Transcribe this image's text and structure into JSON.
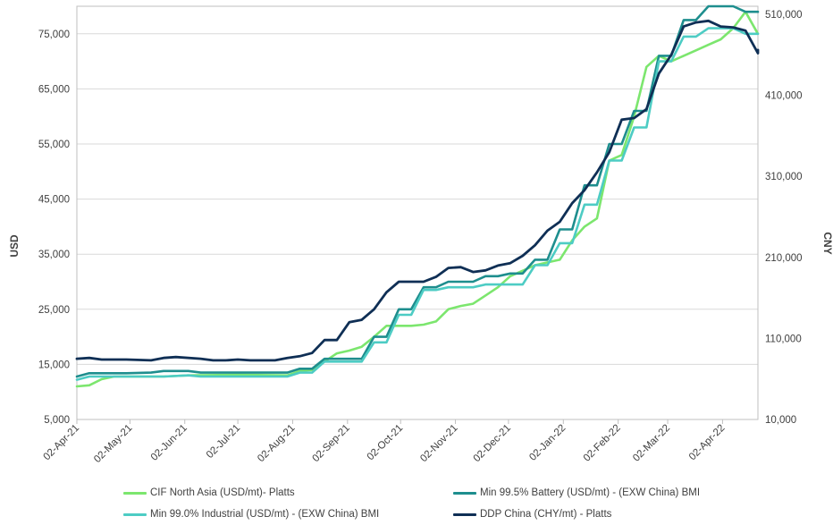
{
  "chart_data": {
    "type": "line",
    "title": "",
    "ylabel_left": "USD",
    "ylabel_right": "CNY",
    "ylim_left": [
      5000,
      80000
    ],
    "ylim_right": [
      10000,
      520000
    ],
    "yticks_left": [
      "5,000",
      "15,000",
      "25,000",
      "35,000",
      "45,000",
      "55,000",
      "65,000",
      "75,000"
    ],
    "yticks_right": [
      "10,000",
      "110,000",
      "210,000",
      "310,000",
      "410,000",
      "510,000"
    ],
    "xticks": [
      "02-Apr-21",
      "02-May-21",
      "02-Jun-21",
      "02-Jul-21",
      "02-Aug-21",
      "02-Sep-21",
      "02-Oct-21",
      "02-Nov-21",
      "02-Dec-21",
      "02-Jan-22",
      "02-Feb-22",
      "02-Mar-22",
      "02-Apr-22"
    ],
    "xlim": [
      "2021-04-02",
      "2022-04-22"
    ],
    "grid": true,
    "legend_position": "bottom",
    "series": [
      {
        "name": "CIF North Asia (USD/mt)- Platts",
        "axis": "left",
        "color": "#7CE66E",
        "points": [
          [
            "2021-04-02",
            11000
          ],
          [
            "2021-04-09",
            11200
          ],
          [
            "2021-04-16",
            12300
          ],
          [
            "2021-04-23",
            12800
          ],
          [
            "2021-05-21",
            12800
          ],
          [
            "2021-06-04",
            13000
          ],
          [
            "2021-07-02",
            13100
          ],
          [
            "2021-07-30",
            13000
          ],
          [
            "2021-08-06",
            13800
          ],
          [
            "2021-08-13",
            14000
          ],
          [
            "2021-08-20",
            15500
          ],
          [
            "2021-08-27",
            17000
          ],
          [
            "2021-09-03",
            17500
          ],
          [
            "2021-09-10",
            18200
          ],
          [
            "2021-09-17",
            20000
          ],
          [
            "2021-09-24",
            22000
          ],
          [
            "2021-10-01",
            22000
          ],
          [
            "2021-10-08",
            22000
          ],
          [
            "2021-10-15",
            22200
          ],
          [
            "2021-10-22",
            22800
          ],
          [
            "2021-10-29",
            25000
          ],
          [
            "2021-11-05",
            25600
          ],
          [
            "2021-11-12",
            26000
          ],
          [
            "2021-11-19",
            27500
          ],
          [
            "2021-11-26",
            29000
          ],
          [
            "2021-12-03",
            31000
          ],
          [
            "2021-12-10",
            32000
          ],
          [
            "2021-12-17",
            33000
          ],
          [
            "2021-12-24",
            33500
          ],
          [
            "2021-12-31",
            34000
          ],
          [
            "2022-01-07",
            37500
          ],
          [
            "2022-01-14",
            40000
          ],
          [
            "2022-01-21",
            41500
          ],
          [
            "2022-01-28",
            52000
          ],
          [
            "2022-02-04",
            53000
          ],
          [
            "2022-02-11",
            60000
          ],
          [
            "2022-02-18",
            69000
          ],
          [
            "2022-02-25",
            71000
          ],
          [
            "2022-03-04",
            70000
          ],
          [
            "2022-03-11",
            71000
          ],
          [
            "2022-03-18",
            72000
          ],
          [
            "2022-03-25",
            73000
          ],
          [
            "2022-04-01",
            74000
          ],
          [
            "2022-04-08",
            76000
          ],
          [
            "2022-04-15",
            79000
          ],
          [
            "2022-04-22",
            75000
          ]
        ]
      },
      {
        "name": "Min 99.5% Battery (USD/mt) - (EXW China) BMI",
        "axis": "left",
        "color": "#1E8E8E",
        "points": [
          [
            "2021-04-02",
            12800
          ],
          [
            "2021-04-09",
            13400
          ],
          [
            "2021-04-30",
            13400
          ],
          [
            "2021-05-14",
            13500
          ],
          [
            "2021-05-21",
            13800
          ],
          [
            "2021-06-04",
            13800
          ],
          [
            "2021-06-11",
            13500
          ],
          [
            "2021-07-23",
            13500
          ],
          [
            "2021-07-30",
            13500
          ],
          [
            "2021-08-06",
            14200
          ],
          [
            "2021-08-13",
            14200
          ],
          [
            "2021-08-20",
            16000
          ],
          [
            "2021-09-03",
            16000
          ],
          [
            "2021-09-10",
            16000
          ],
          [
            "2021-09-17",
            20000
          ],
          [
            "2021-09-24",
            20000
          ],
          [
            "2021-10-01",
            25000
          ],
          [
            "2021-10-08",
            25000
          ],
          [
            "2021-10-15",
            29000
          ],
          [
            "2021-10-22",
            29000
          ],
          [
            "2021-10-29",
            30000
          ],
          [
            "2021-11-12",
            30000
          ],
          [
            "2021-11-19",
            31000
          ],
          [
            "2021-11-26",
            31000
          ],
          [
            "2021-12-03",
            31500
          ],
          [
            "2021-12-10",
            31500
          ],
          [
            "2021-12-17",
            34000
          ],
          [
            "2021-12-24",
            34000
          ],
          [
            "2021-12-31",
            39500
          ],
          [
            "2022-01-07",
            39500
          ],
          [
            "2022-01-14",
            47500
          ],
          [
            "2022-01-21",
            47500
          ],
          [
            "2022-01-28",
            55000
          ],
          [
            "2022-02-04",
            55000
          ],
          [
            "2022-02-11",
            61000
          ],
          [
            "2022-02-18",
            61000
          ],
          [
            "2022-02-25",
            71000
          ],
          [
            "2022-03-04",
            71000
          ],
          [
            "2022-03-11",
            77500
          ],
          [
            "2022-03-18",
            77500
          ],
          [
            "2022-03-25",
            80000
          ],
          [
            "2022-04-08",
            80000
          ],
          [
            "2022-04-15",
            79000
          ],
          [
            "2022-04-22",
            79000
          ]
        ]
      },
      {
        "name": "Min 99.0% Industrial (USD/mt) - (EXW China) BMI",
        "axis": "left",
        "color": "#4DCCC4",
        "points": [
          [
            "2021-04-02",
            12200
          ],
          [
            "2021-04-09",
            12800
          ],
          [
            "2021-05-21",
            12800
          ],
          [
            "2021-06-04",
            13000
          ],
          [
            "2021-06-11",
            12800
          ],
          [
            "2021-07-30",
            12800
          ],
          [
            "2021-08-06",
            13500
          ],
          [
            "2021-08-13",
            13500
          ],
          [
            "2021-08-20",
            15500
          ],
          [
            "2021-09-03",
            15500
          ],
          [
            "2021-09-10",
            15500
          ],
          [
            "2021-09-17",
            19000
          ],
          [
            "2021-09-24",
            19000
          ],
          [
            "2021-10-01",
            24000
          ],
          [
            "2021-10-08",
            24000
          ],
          [
            "2021-10-15",
            28500
          ],
          [
            "2021-10-22",
            28500
          ],
          [
            "2021-10-29",
            29000
          ],
          [
            "2021-11-12",
            29000
          ],
          [
            "2021-11-19",
            29500
          ],
          [
            "2021-11-26",
            29500
          ],
          [
            "2021-12-03",
            29500
          ],
          [
            "2021-12-10",
            29500
          ],
          [
            "2021-12-17",
            33000
          ],
          [
            "2021-12-24",
            33000
          ],
          [
            "2021-12-31",
            37000
          ],
          [
            "2022-01-07",
            37000
          ],
          [
            "2022-01-14",
            44000
          ],
          [
            "2022-01-21",
            44000
          ],
          [
            "2022-01-28",
            52000
          ],
          [
            "2022-02-04",
            52000
          ],
          [
            "2022-02-11",
            58000
          ],
          [
            "2022-02-18",
            58000
          ],
          [
            "2022-02-25",
            70000
          ],
          [
            "2022-03-04",
            70000
          ],
          [
            "2022-03-11",
            74500
          ],
          [
            "2022-03-18",
            74500
          ],
          [
            "2022-03-25",
            76000
          ],
          [
            "2022-04-08",
            76000
          ],
          [
            "2022-04-15",
            75000
          ],
          [
            "2022-04-22",
            75000
          ]
        ]
      },
      {
        "name": "DDP China (CHY/mt) - Platts",
        "axis": "right",
        "color": "#0F2F55",
        "points": [
          [
            "2021-04-02",
            85000
          ],
          [
            "2021-04-09",
            86000
          ],
          [
            "2021-04-16",
            84000
          ],
          [
            "2021-04-30",
            84000
          ],
          [
            "2021-05-14",
            83000
          ],
          [
            "2021-05-21",
            86000
          ],
          [
            "2021-05-28",
            87000
          ],
          [
            "2021-06-11",
            85000
          ],
          [
            "2021-06-18",
            83000
          ],
          [
            "2021-06-25",
            83000
          ],
          [
            "2021-07-02",
            84000
          ],
          [
            "2021-07-09",
            83000
          ],
          [
            "2021-07-23",
            83000
          ],
          [
            "2021-07-30",
            86000
          ],
          [
            "2021-08-06",
            88000
          ],
          [
            "2021-08-13",
            92000
          ],
          [
            "2021-08-20",
            108000
          ],
          [
            "2021-08-27",
            108000
          ],
          [
            "2021-09-03",
            130000
          ],
          [
            "2021-09-10",
            133000
          ],
          [
            "2021-09-17",
            146000
          ],
          [
            "2021-09-24",
            167000
          ],
          [
            "2021-10-01",
            180000
          ],
          [
            "2021-10-08",
            180000
          ],
          [
            "2021-10-15",
            180000
          ],
          [
            "2021-10-22",
            186000
          ],
          [
            "2021-10-29",
            197000
          ],
          [
            "2021-11-05",
            198000
          ],
          [
            "2021-11-12",
            192000
          ],
          [
            "2021-11-19",
            194000
          ],
          [
            "2021-11-26",
            200000
          ],
          [
            "2021-12-03",
            203000
          ],
          [
            "2021-12-10",
            212000
          ],
          [
            "2021-12-17",
            225000
          ],
          [
            "2021-12-24",
            243000
          ],
          [
            "2021-12-31",
            254000
          ],
          [
            "2022-01-07",
            277000
          ],
          [
            "2022-01-14",
            293000
          ],
          [
            "2022-01-21",
            315000
          ],
          [
            "2022-01-28",
            340000
          ],
          [
            "2022-02-04",
            380000
          ],
          [
            "2022-02-11",
            382000
          ],
          [
            "2022-02-18",
            393000
          ],
          [
            "2022-02-25",
            437000
          ],
          [
            "2022-03-04",
            460000
          ],
          [
            "2022-03-11",
            495000
          ],
          [
            "2022-03-18",
            500000
          ],
          [
            "2022-03-25",
            502000
          ],
          [
            "2022-04-01",
            495000
          ],
          [
            "2022-04-08",
            494000
          ],
          [
            "2022-04-15",
            490000
          ],
          [
            "2022-04-22",
            462000
          ],
          [
            "2022-04-29",
            466000
          ]
        ]
      }
    ]
  }
}
